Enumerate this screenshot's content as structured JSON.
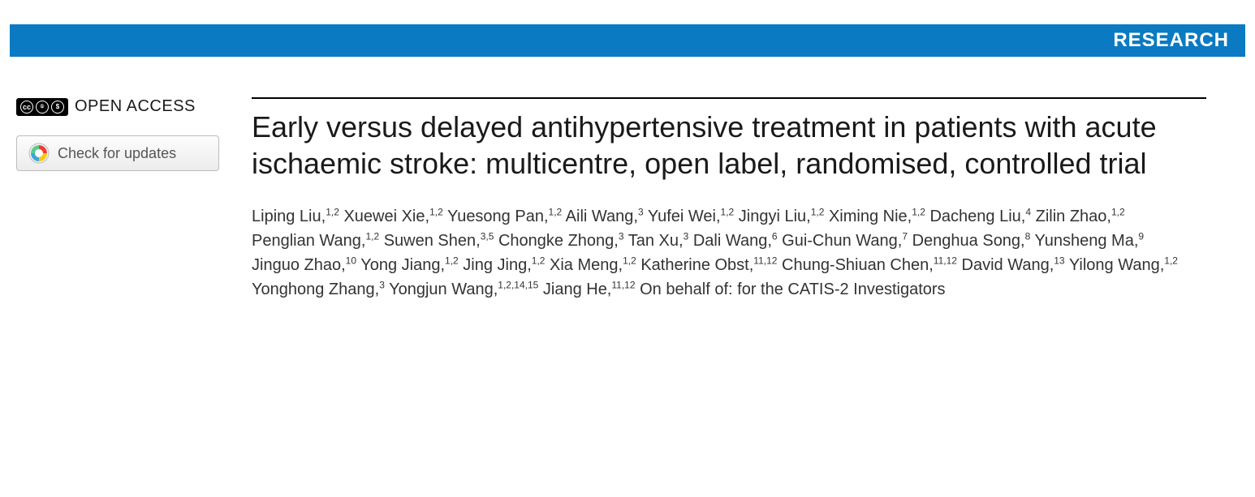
{
  "banner": {
    "label": "RESEARCH",
    "bg": "#0a7ac2",
    "fg": "#ffffff"
  },
  "sidebar": {
    "open_access_label": "OPEN ACCESS",
    "cc_parts": [
      "cc",
      "BY",
      "NC"
    ],
    "updates_button": "Check for updates"
  },
  "article": {
    "title": "Early versus delayed antihypertensive treatment in patients with acute ischaemic stroke: multicentre, open label, randomised, controlled trial",
    "authors": [
      {
        "name": "Liping Liu",
        "aff": "1,2"
      },
      {
        "name": "Xuewei Xie",
        "aff": "1,2"
      },
      {
        "name": "Yuesong Pan",
        "aff": "1,2"
      },
      {
        "name": "Aili Wang",
        "aff": "3"
      },
      {
        "name": "Yufei Wei",
        "aff": "1,2"
      },
      {
        "name": "Jingyi Liu",
        "aff": "1,2"
      },
      {
        "name": "Ximing Nie",
        "aff": "1,2"
      },
      {
        "name": "Dacheng Liu",
        "aff": "4"
      },
      {
        "name": "Zilin Zhao",
        "aff": "1,2"
      },
      {
        "name": "Penglian Wang",
        "aff": "1,2"
      },
      {
        "name": "Suwen Shen",
        "aff": "3,5"
      },
      {
        "name": "Chongke Zhong",
        "aff": "3"
      },
      {
        "name": "Tan Xu",
        "aff": "3"
      },
      {
        "name": "Dali Wang",
        "aff": "6"
      },
      {
        "name": "Gui-Chun Wang",
        "aff": "7"
      },
      {
        "name": "Denghua Song",
        "aff": "8"
      },
      {
        "name": "Yunsheng Ma",
        "aff": "9"
      },
      {
        "name": "Jinguo Zhao",
        "aff": "10"
      },
      {
        "name": "Yong Jiang",
        "aff": "1,2"
      },
      {
        "name": "Jing Jing",
        "aff": "1,2"
      },
      {
        "name": "Xia Meng",
        "aff": "1,2"
      },
      {
        "name": "Katherine Obst",
        "aff": "11,12"
      },
      {
        "name": "Chung-Shiuan Chen",
        "aff": "11,12"
      },
      {
        "name": "David Wang",
        "aff": "13"
      },
      {
        "name": "Yilong Wang",
        "aff": "1,2"
      },
      {
        "name": "Yonghong Zhang",
        "aff": "3"
      },
      {
        "name": "Yongjun Wang",
        "aff": "1,2,14,15"
      },
      {
        "name": "Jiang He",
        "aff": "11,12"
      }
    ],
    "group_author": "On behalf of: for the CATIS-2 Investigators"
  },
  "style": {
    "title_fontsize": 36,
    "author_fontsize": 20,
    "text_color": "#1a1a1a",
    "rule_color": "#000000"
  }
}
